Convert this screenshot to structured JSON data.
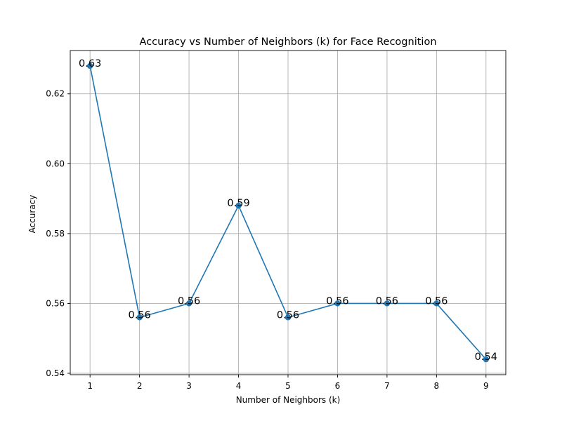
{
  "chart_data": {
    "type": "line",
    "title": "Accuracy vs Number of Neighbors (k) for Face Recognition",
    "xlabel": "Number of Neighbors (k)",
    "ylabel": "Accuracy",
    "x": [
      1,
      2,
      3,
      4,
      5,
      6,
      7,
      8,
      9
    ],
    "series": [
      {
        "values": [
          0.628,
          0.556,
          0.56,
          0.588,
          0.556,
          0.56,
          0.56,
          0.56,
          0.544
        ],
        "data_labels": [
          "0.63",
          "0.56",
          "0.56",
          "0.59",
          "0.56",
          "0.56",
          "0.56",
          "0.56",
          "0.54"
        ],
        "color": "#1f77b4",
        "marker": "circle"
      }
    ],
    "xticks": [
      "1",
      "2",
      "3",
      "4",
      "5",
      "6",
      "7",
      "8",
      "9"
    ],
    "yticks": [
      0.54,
      0.56,
      0.58,
      0.6,
      0.62
    ],
    "ytick_labels": [
      "0.54",
      "0.56",
      "0.58",
      "0.60",
      "0.62"
    ],
    "xlim": [
      0.6,
      9.4
    ],
    "ylim": [
      0.5396,
      0.6324
    ],
    "grid": true,
    "legend": false
  }
}
